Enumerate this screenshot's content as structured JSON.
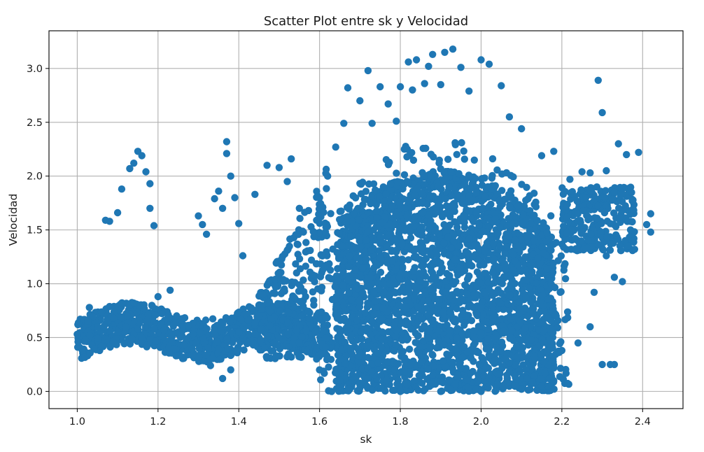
{
  "chart_data": {
    "type": "scatter",
    "title": "Scatter Plot entre sk y Velocidad",
    "xlabel": "sk",
    "ylabel": "Velocidad",
    "xlim": [
      0.93,
      2.5
    ],
    "ylim": [
      -0.16,
      3.35
    ],
    "xticks": [
      1.0,
      1.2,
      1.4,
      1.6,
      1.8,
      2.0,
      2.2,
      2.4
    ],
    "xtick_labels": [
      "1.0",
      "1.2",
      "1.4",
      "1.6",
      "1.8",
      "2.0",
      "2.2",
      "2.4"
    ],
    "yticks": [
      0.0,
      0.5,
      1.0,
      1.5,
      2.0,
      2.5,
      3.0
    ],
    "ytick_labels": [
      "0.0",
      "0.5",
      "1.0",
      "1.5",
      "2.0",
      "2.5",
      "3.0"
    ],
    "grid": true,
    "marker_color": "#1f77b4",
    "points_approx": [
      [
        1.0,
        0.53
      ],
      [
        1.02,
        0.48
      ],
      [
        1.03,
        0.78
      ],
      [
        1.05,
        0.6
      ],
      [
        1.06,
        0.42
      ],
      [
        1.08,
        0.56
      ],
      [
        1.09,
        0.68
      ],
      [
        1.12,
        0.6
      ],
      [
        1.14,
        0.82
      ],
      [
        1.16,
        0.5
      ],
      [
        1.2,
        0.88
      ],
      [
        1.23,
        0.94
      ],
      [
        1.26,
        0.6
      ],
      [
        1.3,
        0.32
      ],
      [
        1.33,
        0.24
      ],
      [
        1.36,
        0.12
      ],
      [
        1.38,
        0.2
      ],
      [
        1.4,
        0.55
      ],
      [
        1.45,
        0.7
      ],
      [
        1.5,
        0.5
      ],
      [
        1.55,
        0.45
      ],
      [
        1.59,
        0.56
      ],
      [
        1.07,
        1.59
      ],
      [
        1.08,
        1.58
      ],
      [
        1.1,
        1.66
      ],
      [
        1.11,
        1.88
      ],
      [
        1.13,
        2.07
      ],
      [
        1.14,
        2.12
      ],
      [
        1.15,
        2.23
      ],
      [
        1.16,
        2.19
      ],
      [
        1.17,
        2.04
      ],
      [
        1.18,
        1.93
      ],
      [
        1.18,
        1.7
      ],
      [
        1.19,
        1.54
      ],
      [
        1.3,
        1.63
      ],
      [
        1.31,
        1.55
      ],
      [
        1.32,
        1.46
      ],
      [
        1.34,
        1.79
      ],
      [
        1.35,
        1.86
      ],
      [
        1.36,
        1.7
      ],
      [
        1.37,
        2.32
      ],
      [
        1.37,
        2.21
      ],
      [
        1.38,
        2.0
      ],
      [
        1.39,
        1.8
      ],
      [
        1.4,
        1.56
      ],
      [
        1.41,
        1.26
      ],
      [
        1.44,
        1.83
      ],
      [
        1.47,
        2.1
      ],
      [
        1.5,
        2.08
      ],
      [
        1.52,
        1.95
      ],
      [
        1.53,
        2.16
      ],
      [
        1.55,
        1.7
      ],
      [
        1.51,
        1.04
      ],
      [
        1.52,
        1.31
      ],
      [
        1.56,
        1.48
      ],
      [
        1.58,
        1.22
      ],
      [
        1.6,
        1.8
      ],
      [
        1.62,
        2.0
      ],
      [
        1.64,
        2.27
      ],
      [
        1.66,
        2.49
      ],
      [
        1.67,
        2.82
      ],
      [
        1.7,
        2.7
      ],
      [
        1.72,
        2.98
      ],
      [
        1.73,
        2.49
      ],
      [
        1.75,
        2.83
      ],
      [
        1.77,
        2.67
      ],
      [
        1.79,
        2.51
      ],
      [
        1.8,
        2.83
      ],
      [
        1.82,
        3.06
      ],
      [
        1.83,
        2.8
      ],
      [
        1.84,
        3.08
      ],
      [
        1.86,
        2.86
      ],
      [
        1.87,
        3.02
      ],
      [
        1.88,
        3.13
      ],
      [
        1.9,
        2.85
      ],
      [
        1.91,
        3.15
      ],
      [
        1.93,
        3.18
      ],
      [
        1.95,
        3.01
      ],
      [
        1.97,
        2.79
      ],
      [
        2.0,
        3.08
      ],
      [
        2.02,
        3.04
      ],
      [
        2.05,
        2.84
      ],
      [
        2.07,
        2.55
      ],
      [
        2.1,
        2.44
      ],
      [
        2.15,
        2.19
      ],
      [
        2.18,
        2.23
      ],
      [
        2.22,
        1.97
      ],
      [
        2.25,
        2.04
      ],
      [
        2.27,
        2.03
      ],
      [
        2.29,
        2.89
      ],
      [
        2.3,
        2.59
      ],
      [
        2.31,
        2.05
      ],
      [
        2.33,
        1.85
      ],
      [
        2.34,
        2.3
      ],
      [
        2.36,
        2.2
      ],
      [
        2.38,
        1.32
      ],
      [
        2.39,
        2.22
      ],
      [
        2.41,
        1.55
      ],
      [
        2.42,
        1.65
      ],
      [
        2.42,
        1.48
      ],
      [
        2.37,
        1.5
      ],
      [
        2.35,
        1.02
      ],
      [
        2.33,
        1.06
      ],
      [
        2.31,
        1.26
      ],
      [
        2.3,
        0.25
      ],
      [
        2.32,
        0.25
      ],
      [
        2.33,
        0.25
      ],
      [
        2.28,
        0.92
      ],
      [
        2.27,
        0.6
      ],
      [
        2.24,
        0.45
      ],
      [
        2.2,
        0.38
      ],
      [
        2.18,
        0.1
      ],
      [
        2.15,
        0.05
      ],
      [
        2.1,
        0.02
      ],
      [
        2.0,
        0.0
      ],
      [
        1.9,
        0.0
      ],
      [
        1.8,
        0.0
      ],
      [
        1.7,
        0.03
      ],
      [
        1.65,
        0.1
      ],
      [
        1.63,
        0.0
      ],
      [
        1.6,
        0.2
      ]
    ],
    "dense_cluster_approx": {
      "x_range": [
        1.6,
        2.22
      ],
      "y_range": [
        0.0,
        2.4
      ],
      "core_x_range": [
        1.64,
        2.18
      ],
      "core_y_range": [
        0.0,
        2.05
      ]
    }
  }
}
